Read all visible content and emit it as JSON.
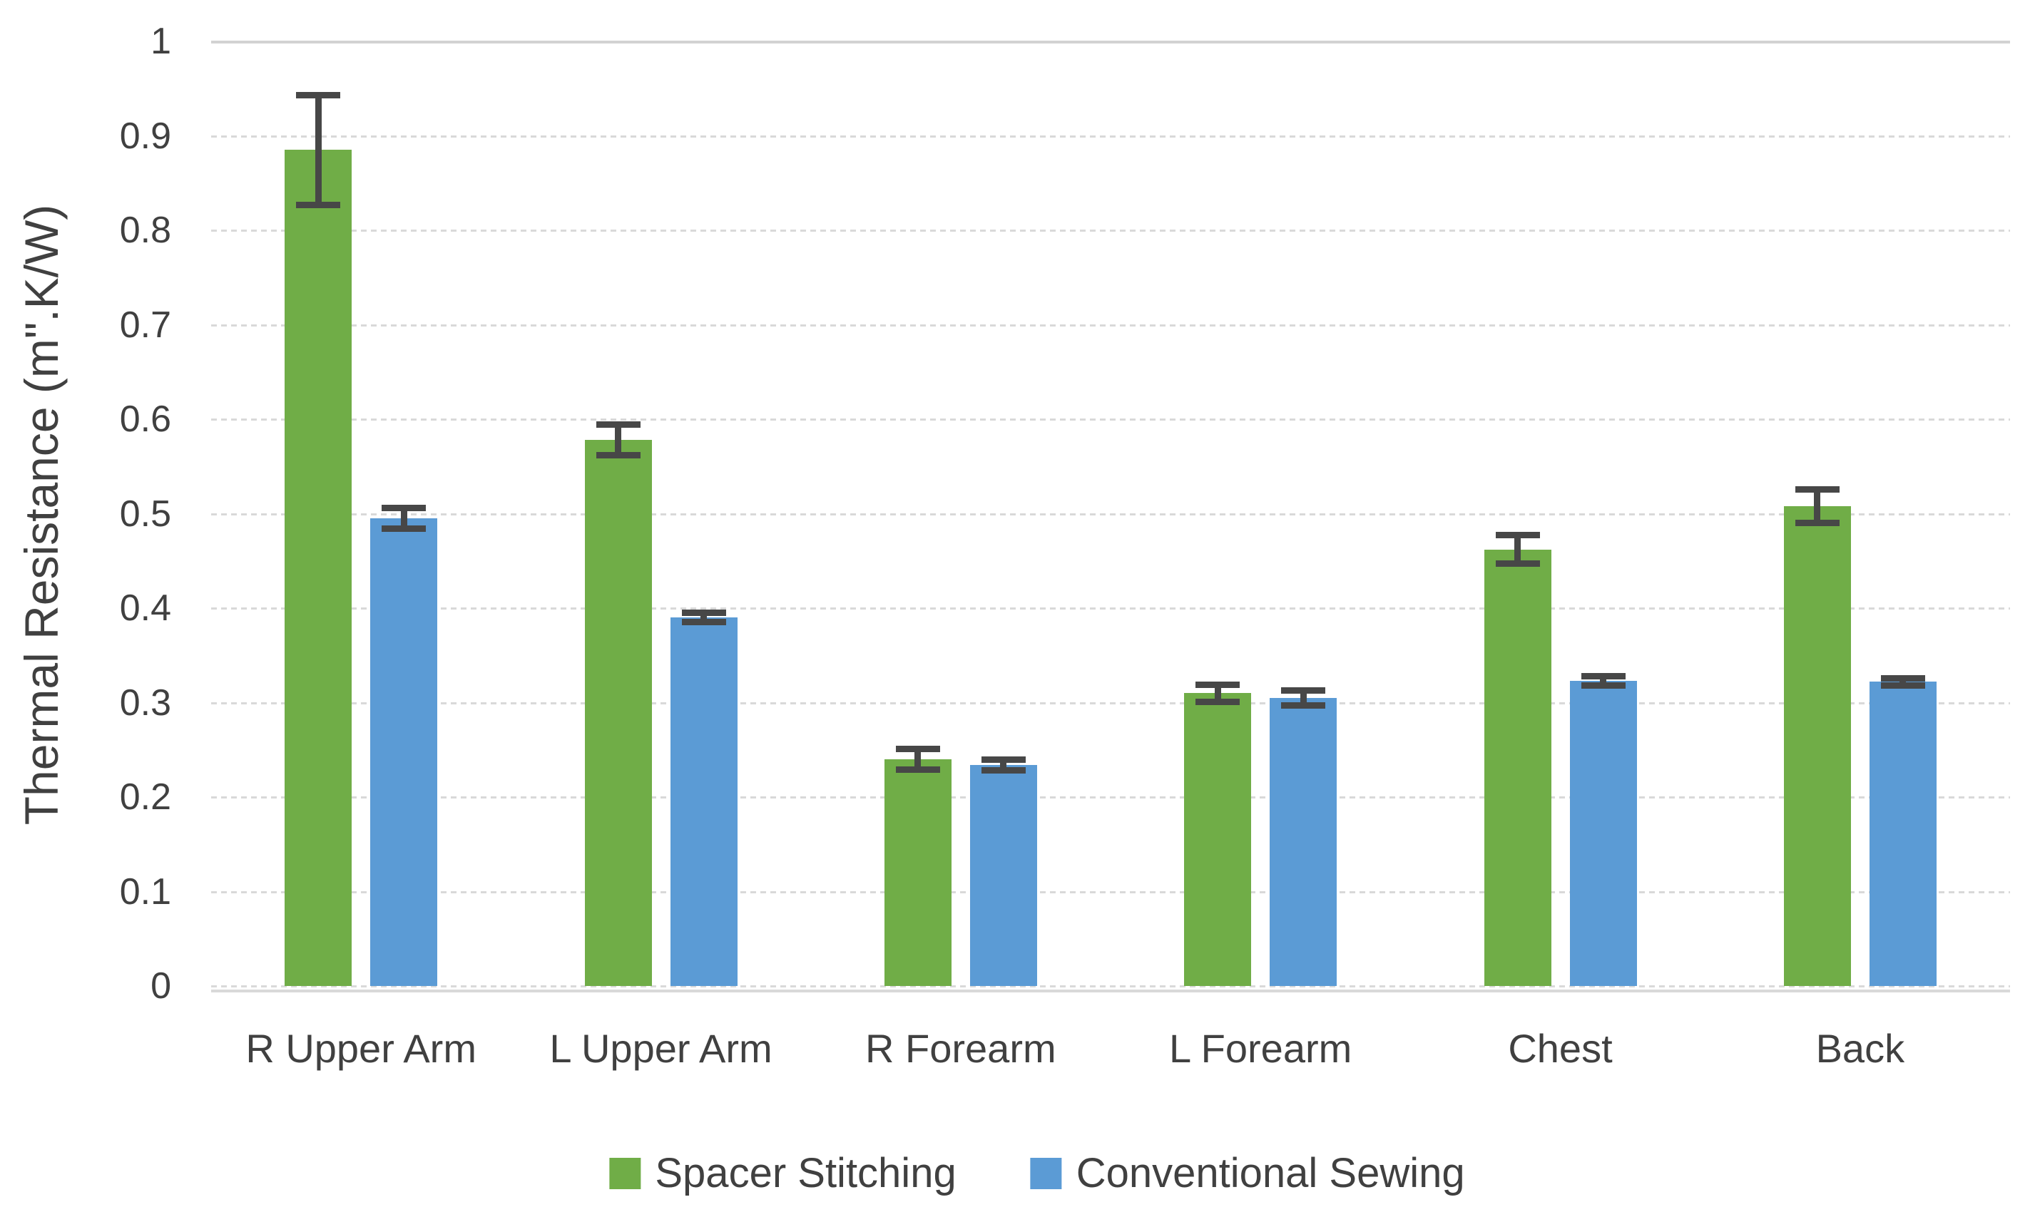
{
  "chart_data": {
    "type": "bar",
    "title": "",
    "xlabel": "",
    "ylabel": "Thermal Resistance (m\".K/W)",
    "ylim": [
      0,
      1
    ],
    "ytick_labels": [
      "0",
      "0.1",
      "0.2",
      "0.3",
      "0.4",
      "0.5",
      "0.6",
      "0.7",
      "0.8",
      "0.9",
      "1"
    ],
    "categories": [
      "R Upper Arm",
      "L Upper Arm",
      "R Forearm",
      "L Forearm",
      "Chest",
      "Back"
    ],
    "series": [
      {
        "name": "Spacer Stitching",
        "color": "#70AD47",
        "values": [
          0.885,
          0.578,
          0.24,
          0.31,
          0.462,
          0.508
        ],
        "errors": [
          0.058,
          0.016,
          0.011,
          0.009,
          0.015,
          0.018
        ]
      },
      {
        "name": "Conventional Sewing",
        "color": "#5B9BD5",
        "values": [
          0.495,
          0.39,
          0.234,
          0.305,
          0.323,
          0.322
        ],
        "errors": [
          0.011,
          0.005,
          0.006,
          0.008,
          0.005,
          0.004
        ]
      }
    ],
    "grid": "horizontal",
    "gridline_style": "dashed",
    "top_gridline_style": "solid",
    "gridline_color": "#D9D9D9",
    "axis_line_color": "#D9D9D9",
    "error_bar_color": "#474747",
    "text_color": "#404040",
    "background_color": "#FFFFFF",
    "legend_position": "bottom"
  }
}
